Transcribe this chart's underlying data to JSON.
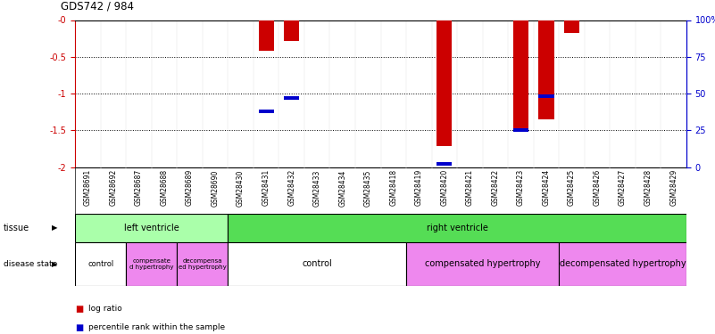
{
  "title": "GDS742 / 984",
  "samples": [
    "GSM28691",
    "GSM28692",
    "GSM28687",
    "GSM28688",
    "GSM28689",
    "GSM28690",
    "GSM28430",
    "GSM28431",
    "GSM28432",
    "GSM28433",
    "GSM28434",
    "GSM28435",
    "GSM28418",
    "GSM28419",
    "GSM28420",
    "GSM28421",
    "GSM28422",
    "GSM28423",
    "GSM28424",
    "GSM28425",
    "GSM28426",
    "GSM28427",
    "GSM28428",
    "GSM28429"
  ],
  "log_ratio": [
    0,
    0,
    0,
    0,
    0,
    0,
    0,
    -0.42,
    -0.28,
    0,
    0,
    0,
    0,
    0,
    -1.72,
    0,
    0,
    -1.52,
    -1.35,
    -0.18,
    0,
    0,
    0,
    0
  ],
  "percentile_rank_pct": [
    null,
    null,
    null,
    null,
    null,
    null,
    null,
    38,
    47,
    null,
    null,
    null,
    null,
    null,
    2,
    null,
    null,
    25,
    48,
    null,
    null,
    null,
    null,
    null
  ],
  "ylim_left": [
    -2,
    0
  ],
  "ylim_right": [
    0,
    100
  ],
  "yticks_left": [
    -2,
    -1.5,
    -1,
    -0.5,
    0
  ],
  "yticks_left_labels": [
    "-2",
    "-1.5",
    "-1",
    "-0.5",
    "-0"
  ],
  "yticks_right": [
    0,
    25,
    50,
    75,
    100
  ],
  "yticks_right_labels": [
    "0",
    "25",
    "50",
    "75",
    "100%"
  ],
  "hlines": [
    -0.5,
    -1.0,
    -1.5
  ],
  "bar_color": "#cc0000",
  "dot_color": "#0000cc",
  "tissue_groups": [
    {
      "label": "left ventricle",
      "start": 0,
      "end": 6,
      "color": "#aaffaa"
    },
    {
      "label": "right ventricle",
      "start": 6,
      "end": 24,
      "color": "#55dd55"
    }
  ],
  "disease_groups": [
    {
      "label": "control",
      "start": 0,
      "end": 2,
      "color": "#ffffff",
      "text_size": 6
    },
    {
      "label": "compensate\nd hypertrophy",
      "start": 2,
      "end": 4,
      "color": "#ee88ee",
      "text_size": 5
    },
    {
      "label": "decompensa\ned hypertrophy",
      "start": 4,
      "end": 6,
      "color": "#ee88ee",
      "text_size": 5
    },
    {
      "label": "control",
      "start": 6,
      "end": 13,
      "color": "#ffffff",
      "text_size": 7
    },
    {
      "label": "compensated hypertrophy",
      "start": 13,
      "end": 19,
      "color": "#ee88ee",
      "text_size": 7
    },
    {
      "label": "decompensated hypertrophy",
      "start": 19,
      "end": 24,
      "color": "#ee88ee",
      "text_size": 7
    }
  ],
  "bg_color": "#ffffff",
  "left_axis_color": "#cc0000",
  "right_axis_color": "#0000cc",
  "xtick_bg_color": "#cccccc",
  "bar_width": 0.6
}
